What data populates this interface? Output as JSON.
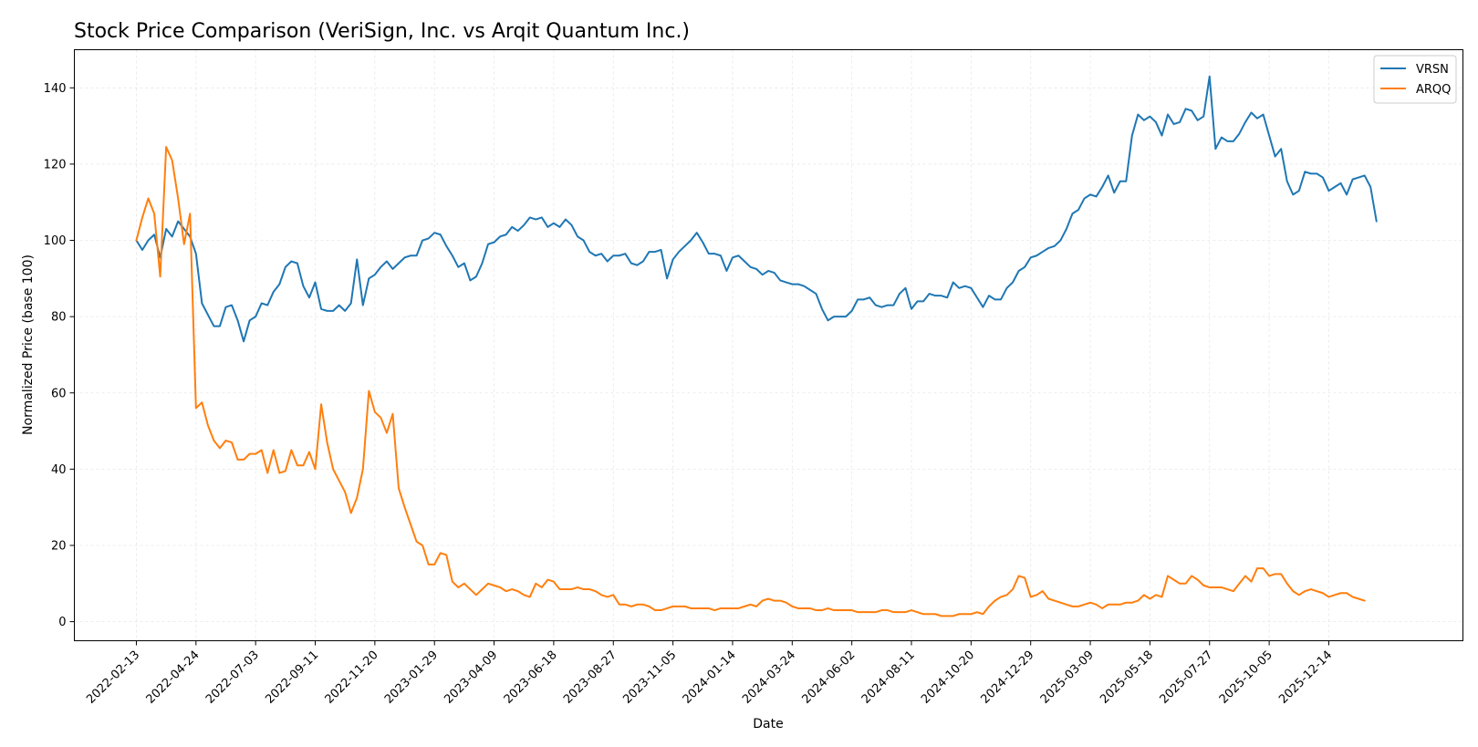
{
  "chart_data": {
    "type": "line",
    "title": "Stock Price Comparison (VeriSign, Inc. vs Arqit Quantum Inc.)",
    "xlabel": "Date",
    "ylabel": "Normalized Price (base 100)",
    "ylim": [
      -5,
      150
    ],
    "yticks": [
      0,
      20,
      40,
      60,
      80,
      100,
      120,
      140
    ],
    "x_start": "2022-02-13",
    "x_step_days": 7,
    "xlim_weeks": [
      -10.4,
      222.5
    ],
    "xtick_labels": [
      "2022-02-13",
      "2022-04-24",
      "2022-07-03",
      "2022-09-11",
      "2022-11-20",
      "2023-01-29",
      "2023-04-09",
      "2023-06-18",
      "2023-08-27",
      "2023-11-05",
      "2024-01-14",
      "2024-03-24",
      "2024-06-02",
      "2024-08-11",
      "2024-10-20",
      "2024-12-29",
      "2025-03-09",
      "2025-05-18",
      "2025-07-27",
      "2025-10-05",
      "2025-12-14"
    ],
    "xtick_weeks": [
      0,
      10,
      20,
      30,
      40,
      50,
      60,
      70,
      80,
      90,
      100,
      110,
      120,
      130,
      140,
      150,
      160,
      170,
      180,
      190,
      200
    ],
    "grid": true,
    "legend_position": "top-right",
    "series": [
      {
        "name": "VRSN",
        "color": "#1f77b4",
        "values": [
          100,
          97.5,
          100,
          101.5,
          95.5,
          103,
          101,
          105,
          103,
          101,
          96.5,
          83.5,
          80.5,
          77.5,
          77.5,
          82.5,
          83,
          79,
          73.5,
          79,
          80,
          83.5,
          83,
          86.5,
          88.5,
          93,
          94.5,
          94,
          88,
          85,
          89,
          82,
          81.5,
          81.5,
          83,
          81.5,
          83.5,
          95,
          83,
          90,
          91,
          93,
          94.5,
          92.5,
          94,
          95.5,
          96,
          96,
          100,
          100.5,
          102,
          101.5,
          98.5,
          96,
          93,
          94,
          89.5,
          90.5,
          94,
          99,
          99.5,
          101,
          101.5,
          103.5,
          102.5,
          104,
          106,
          105.5,
          106,
          103.5,
          104.5,
          103.5,
          105.5,
          104,
          101,
          100,
          97,
          96,
          96.5,
          94.5,
          96,
          96,
          96.5,
          94,
          93.5,
          94.5,
          97,
          97,
          97.5,
          90,
          95,
          97,
          98.5,
          100,
          102,
          99.5,
          96.5,
          96.5,
          96,
          92,
          95.5,
          96,
          94.5,
          93,
          92.5,
          91,
          92,
          91.5,
          89.5,
          89,
          88.5,
          88.5,
          88,
          87,
          86,
          82,
          79,
          80,
          80,
          80,
          81.5,
          84.5,
          84.5,
          85,
          83,
          82.5,
          83,
          83,
          86,
          87.5,
          82,
          84,
          84,
          86,
          85.5,
          85.5,
          85,
          89,
          87.5,
          88,
          87.5,
          85,
          82.5,
          85.5,
          84.5,
          84.5,
          87.5,
          89,
          92,
          93,
          95.5,
          96,
          97,
          98,
          98.5,
          100,
          103,
          107,
          108,
          111,
          112,
          111.5,
          114,
          117,
          112.5,
          115.5,
          115.5,
          127.5,
          133,
          131.5,
          132.5,
          131,
          127.5,
          133,
          130.5,
          131,
          134.5,
          134,
          131.5,
          132.5,
          143,
          124,
          127,
          126,
          126,
          128,
          131,
          133.5,
          132,
          133,
          127.5,
          122,
          124,
          115.5,
          112,
          113,
          118,
          117.5,
          117.5,
          116.5,
          113,
          114,
          115,
          112,
          116,
          116.5,
          117,
          114,
          105
        ]
      },
      {
        "name": "ARQQ",
        "color": "#ff7f0e",
        "values": [
          100,
          106,
          111,
          107,
          90.5,
          124.5,
          121,
          111,
          99,
          107,
          56,
          57.5,
          51.5,
          47.5,
          45.5,
          47.5,
          47,
          42.5,
          42.5,
          44,
          44,
          45,
          39,
          45,
          39,
          39.5,
          45,
          41,
          41,
          44.5,
          40,
          57,
          47,
          40,
          37,
          34,
          28.5,
          32.5,
          40,
          60.5,
          55,
          53.5,
          49.5,
          54.5,
          35,
          30,
          25.5,
          21,
          20,
          15,
          15,
          18,
          17.5,
          10.5,
          9,
          10,
          8.5,
          7,
          8.5,
          10,
          9.5,
          9,
          8,
          8.5,
          8,
          7,
          6.5,
          10,
          9,
          11,
          10.5,
          8.5,
          8.5,
          8.5,
          9,
          8.5,
          8.5,
          8,
          7,
          6.5,
          7,
          4.5,
          4.5,
          4,
          4.5,
          4.5,
          4,
          3,
          3,
          3.5,
          4,
          4,
          4,
          3.5,
          3.5,
          3.5,
          3.5,
          3,
          3.5,
          3.5,
          3.5,
          3.5,
          4,
          4.5,
          4,
          5.5,
          6,
          5.5,
          5.5,
          5,
          4,
          3.5,
          3.5,
          3.5,
          3,
          3,
          3.5,
          3,
          3,
          3,
          3,
          2.5,
          2.5,
          2.5,
          2.5,
          3,
          3,
          2.5,
          2.5,
          2.5,
          3,
          2.5,
          2,
          2,
          2,
          1.5,
          1.5,
          1.5,
          2,
          2,
          2,
          2.5,
          2,
          4,
          5.5,
          6.5,
          7,
          8.5,
          12,
          11.5,
          6.5,
          7,
          8,
          6,
          5.5,
          5,
          4.5,
          4,
          4,
          4.5,
          5,
          4.5,
          3.5,
          4.5,
          4.5,
          4.5,
          5,
          5,
          5.5,
          7,
          6,
          7,
          6.5,
          12,
          11,
          10,
          10,
          12,
          11,
          9.5,
          9,
          9,
          9,
          8.5,
          8,
          10,
          12,
          10.5,
          14,
          14,
          12,
          12.5,
          12.5,
          10,
          8,
          7,
          8,
          8.5,
          8,
          7.5,
          6.5,
          7,
          7.5,
          7.5,
          6.5,
          6,
          5.5
        ]
      }
    ]
  }
}
